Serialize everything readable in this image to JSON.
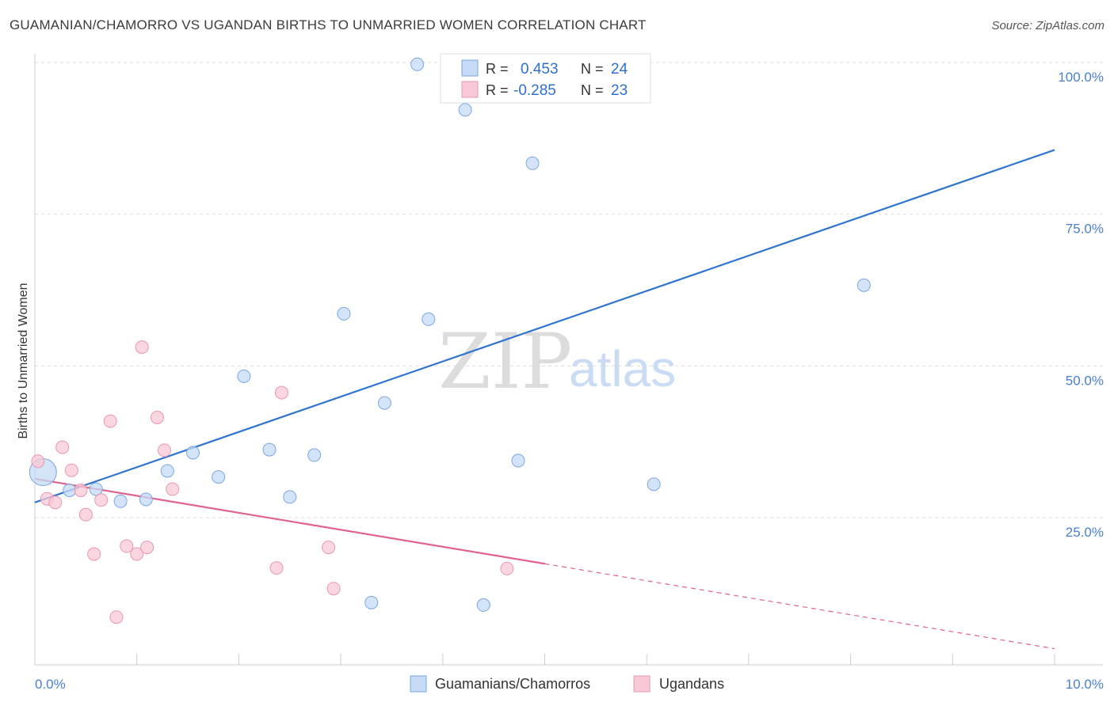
{
  "header": {
    "title": "GUAMANIAN/CHAMORRO VS UGANDAN BIRTHS TO UNMARRIED WOMEN CORRELATION CHART",
    "source": "Source: ZipAtlas.com"
  },
  "watermark": {
    "zip": "ZIP",
    "atlas": "atlas"
  },
  "colors": {
    "blue": "#2f74d0",
    "blue_fill": "#c5dbf5",
    "pink": "#e0628f",
    "pink_fill": "#f8c8d6",
    "tick_text": "#4a7fd0",
    "grid": "#dddddd"
  },
  "legend": {
    "rows": [
      {
        "r_label": "R =",
        "r_value": "0.453",
        "n_label": "N =",
        "n_value": "24"
      },
      {
        "r_label": "R =",
        "r_value": "-0.285",
        "n_label": "N =",
        "n_value": "23"
      }
    ]
  },
  "bottom_legend": [
    {
      "label": "Guamanians/Chamorros"
    },
    {
      "label": "Ugandans"
    }
  ],
  "chart_data": {
    "type": "scatter",
    "title": "GUAMANIAN/CHAMORRO VS UGANDAN BIRTHS TO UNMARRIED WOMEN CORRELATION CHART",
    "xlabel": "",
    "ylabel": "Births to Unmarried Women",
    "xlim": [
      0,
      10
    ],
    "ylim": [
      0,
      102
    ],
    "x_tick_labels": [
      "0.0%",
      "10.0%"
    ],
    "y_ticks": [
      25,
      50,
      75,
      100
    ],
    "y_tick_labels": [
      "25.0%",
      "50.0%",
      "75.0%",
      "100.0%"
    ],
    "grid": true,
    "legend_position": "top-center",
    "series": [
      {
        "name": "Guamanians/Chamorros",
        "color": "#2f74d0",
        "r": 0.453,
        "n": 24,
        "points": [
          {
            "x": 0.08,
            "y": 32.5,
            "size": "large"
          },
          {
            "x": 0.34,
            "y": 29.5
          },
          {
            "x": 0.6,
            "y": 29.7
          },
          {
            "x": 0.84,
            "y": 27.7
          },
          {
            "x": 1.09,
            "y": 28.0
          },
          {
            "x": 1.3,
            "y": 32.7
          },
          {
            "x": 1.55,
            "y": 35.7
          },
          {
            "x": 1.8,
            "y": 31.7
          },
          {
            "x": 2.05,
            "y": 48.3
          },
          {
            "x": 2.3,
            "y": 36.2
          },
          {
            "x": 2.5,
            "y": 28.4
          },
          {
            "x": 2.74,
            "y": 35.3
          },
          {
            "x": 3.03,
            "y": 58.6
          },
          {
            "x": 3.3,
            "y": 11.0
          },
          {
            "x": 3.43,
            "y": 43.9
          },
          {
            "x": 3.75,
            "y": 99.7
          },
          {
            "x": 3.86,
            "y": 57.7
          },
          {
            "x": 4.22,
            "y": 92.2
          },
          {
            "x": 4.4,
            "y": 10.6
          },
          {
            "x": 4.74,
            "y": 34.4
          },
          {
            "x": 4.88,
            "y": 83.4
          },
          {
            "x": 5.46,
            "y": 99.7
          },
          {
            "x": 6.07,
            "y": 30.5
          },
          {
            "x": 8.13,
            "y": 63.3
          }
        ],
        "trend": {
          "x0": 0,
          "y0": 27.5,
          "x1": 10,
          "y1": 85.6
        }
      },
      {
        "name": "Ugandans",
        "color": "#e0628f",
        "r": -0.285,
        "n": 23,
        "points": [
          {
            "x": 0.03,
            "y": 34.3
          },
          {
            "x": 0.12,
            "y": 28.1
          },
          {
            "x": 0.2,
            "y": 27.5
          },
          {
            "x": 0.27,
            "y": 36.6
          },
          {
            "x": 0.36,
            "y": 32.8
          },
          {
            "x": 0.45,
            "y": 29.5
          },
          {
            "x": 0.5,
            "y": 25.5
          },
          {
            "x": 0.58,
            "y": 19.0
          },
          {
            "x": 0.65,
            "y": 27.9
          },
          {
            "x": 0.74,
            "y": 40.9
          },
          {
            "x": 0.8,
            "y": 8.6
          },
          {
            "x": 0.9,
            "y": 20.3
          },
          {
            "x": 1.0,
            "y": 19.0
          },
          {
            "x": 1.05,
            "y": 53.1
          },
          {
            "x": 1.1,
            "y": 20.1
          },
          {
            "x": 1.2,
            "y": 41.5
          },
          {
            "x": 1.27,
            "y": 36.1
          },
          {
            "x": 1.35,
            "y": 29.7
          },
          {
            "x": 2.37,
            "y": 16.7
          },
          {
            "x": 2.42,
            "y": 45.6
          },
          {
            "x": 2.88,
            "y": 20.1
          },
          {
            "x": 2.93,
            "y": 13.3
          },
          {
            "x": 4.63,
            "y": 16.6
          }
        ],
        "trend": {
          "x0": 0,
          "y0": 31.4,
          "x1": 10,
          "y1": 3.4,
          "solid_until_x": 5.0
        }
      }
    ]
  }
}
